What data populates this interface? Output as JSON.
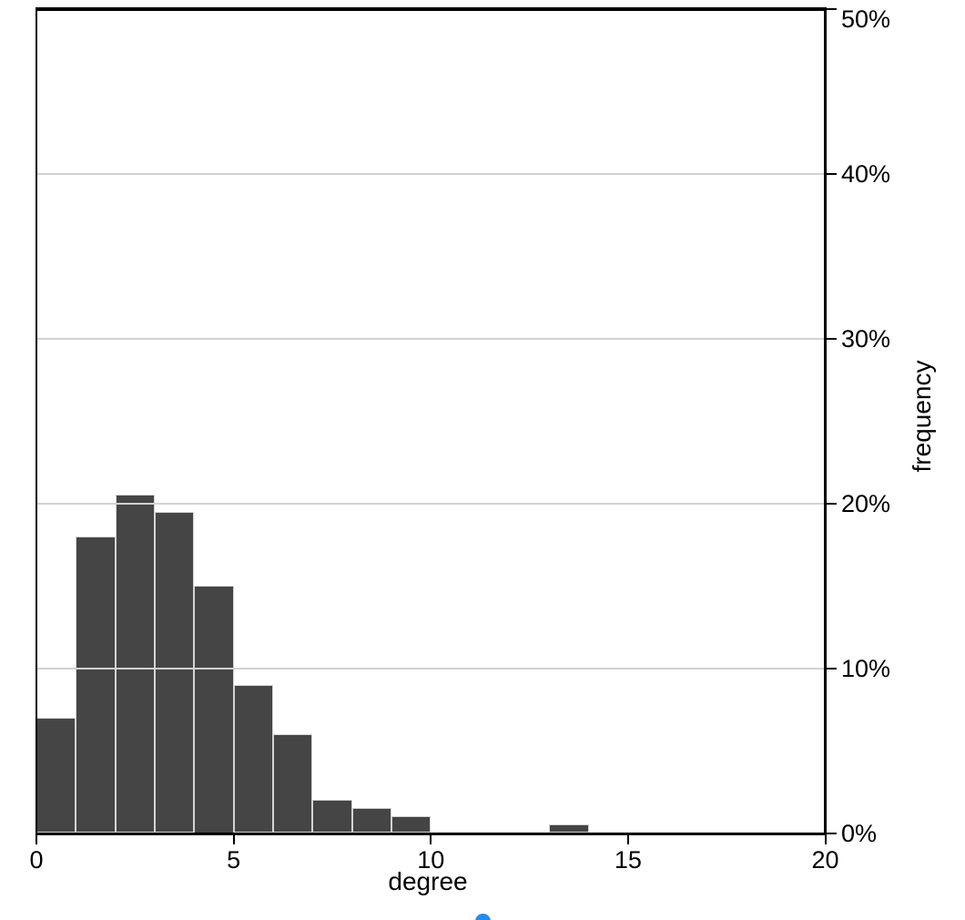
{
  "chart_data": {
    "type": "bar",
    "subtype": "histogram",
    "title": "",
    "xlabel": "degree",
    "ylabel": "frequency",
    "xlim": [
      0,
      20
    ],
    "ylim_percent": [
      0,
      50
    ],
    "x_ticks": [
      0,
      5,
      10,
      15,
      20
    ],
    "y_ticks": [
      {
        "pct": 0,
        "label": "0%"
      },
      {
        "pct": 10,
        "label": "10%"
      },
      {
        "pct": 20,
        "label": "20%"
      },
      {
        "pct": 30,
        "label": "30%"
      },
      {
        "pct": 40,
        "label": "40%"
      },
      {
        "pct": 50,
        "label": "50%"
      }
    ],
    "bars": [
      {
        "x0": 0,
        "x1": 1,
        "pct": 7
      },
      {
        "x0": 1,
        "x1": 2,
        "pct": 18
      },
      {
        "x0": 2,
        "x1": 3,
        "pct": 20.5
      },
      {
        "x0": 3,
        "x1": 4,
        "pct": 19.5
      },
      {
        "x0": 4,
        "x1": 5,
        "pct": 15
      },
      {
        "x0": 5,
        "x1": 6,
        "pct": 9
      },
      {
        "x0": 6,
        "x1": 7,
        "pct": 6
      },
      {
        "x0": 7,
        "x1": 8,
        "pct": 2
      },
      {
        "x0": 8,
        "x1": 9,
        "pct": 1.5
      },
      {
        "x0": 9,
        "x1": 10,
        "pct": 1
      },
      {
        "x0": 13,
        "x1": 14,
        "pct": 0.5
      }
    ],
    "legend": "none",
    "grid": "horizontal-major-over-bars",
    "y_axis_side": "right",
    "colors": {
      "bar_fill": "#454545",
      "bar_border": "#d4d4d4",
      "gridline": "#d1d1d1",
      "axis": "#000000",
      "text": "#000000"
    }
  },
  "misc": {
    "blue_partial_circle_color": "#1c8cff"
  }
}
